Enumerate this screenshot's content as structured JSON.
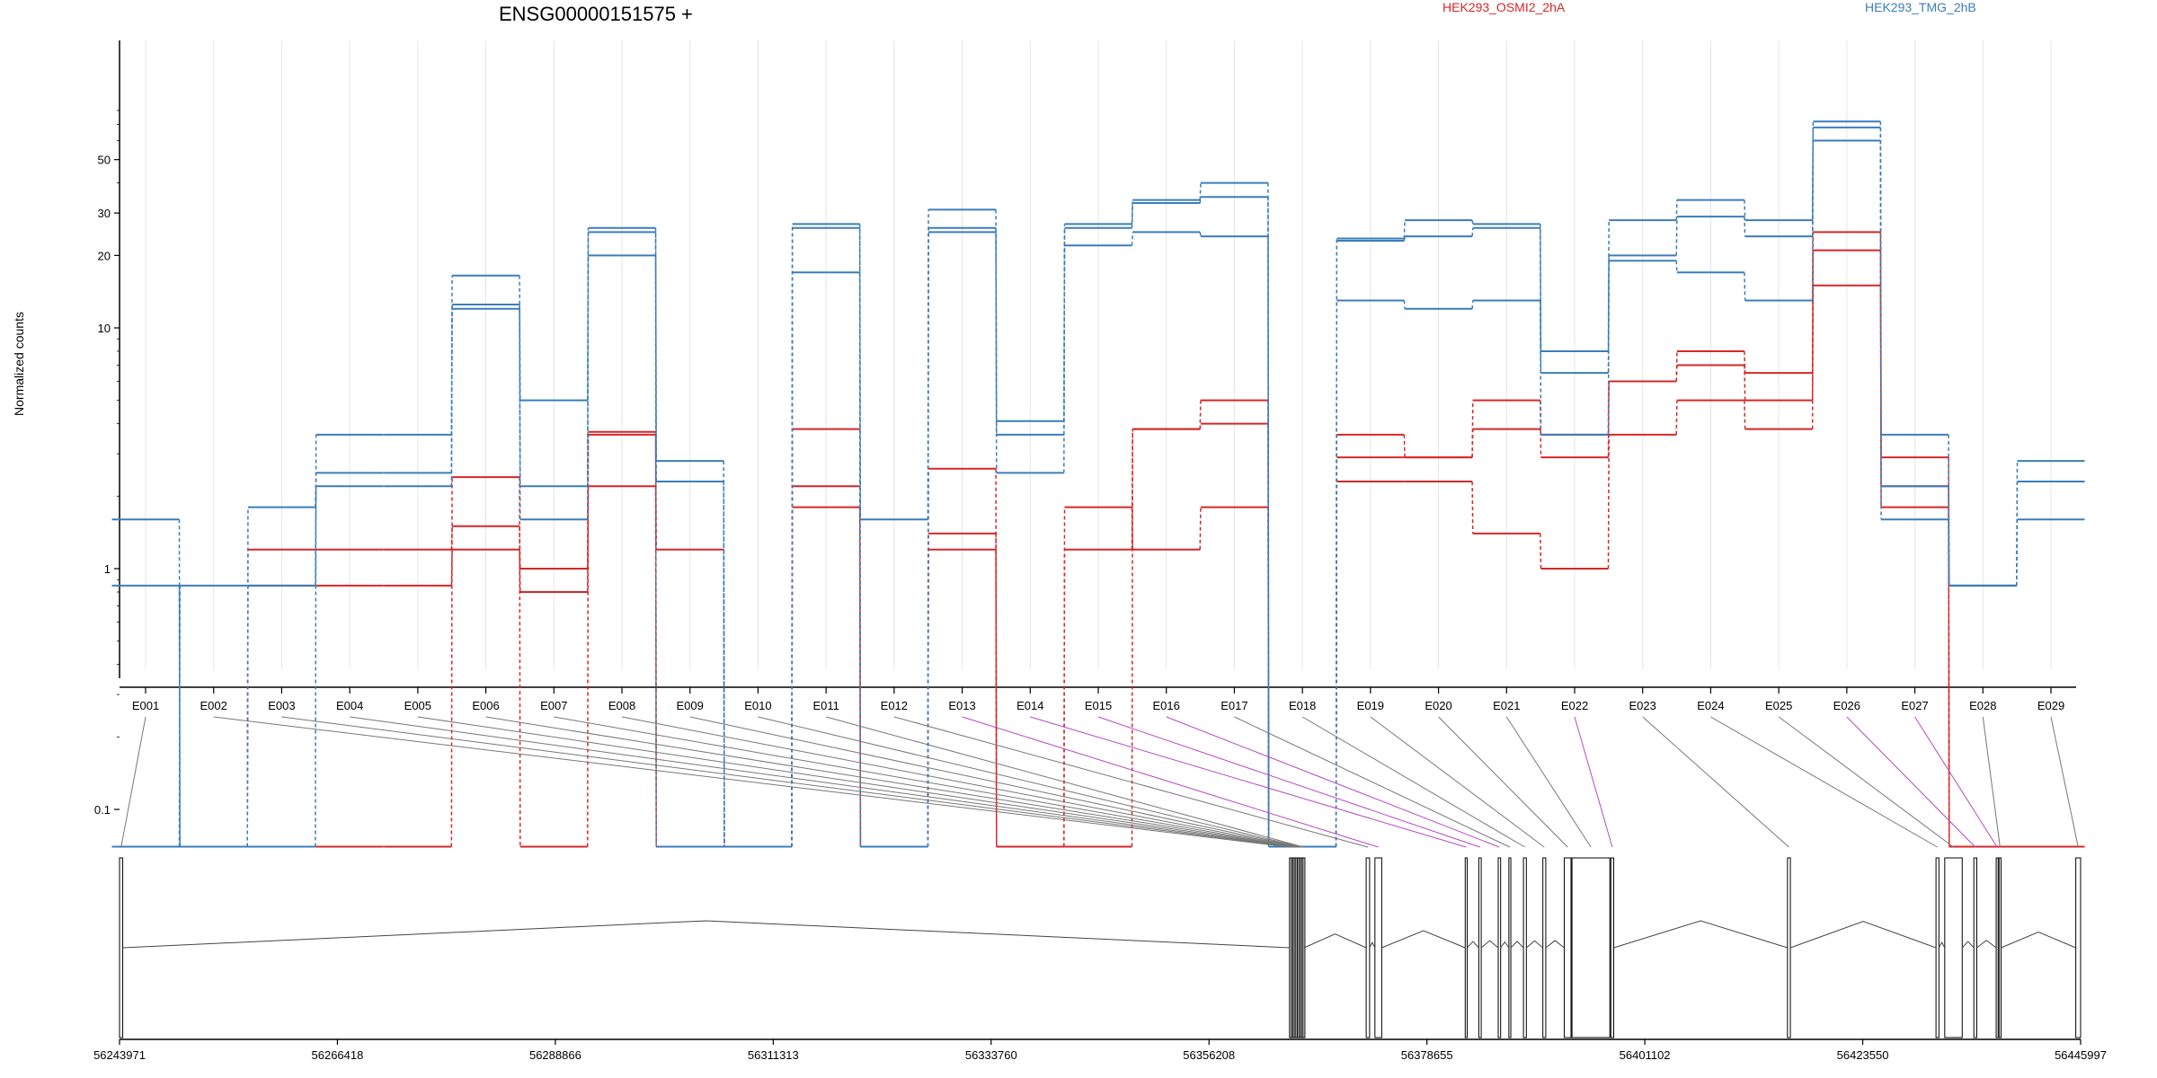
{
  "chart_data": {
    "type": "line",
    "title": "ENSG00000151575 +",
    "ylabel": "Normalized counts",
    "yscale": "log",
    "y_ticks": [
      0.1,
      1,
      10,
      20,
      30,
      50
    ],
    "y_tick_labels": [
      "0.1",
      "1",
      "10",
      "20",
      "30",
      "50"
    ],
    "categories": [
      "E001",
      "E002",
      "E003",
      "E004",
      "E005",
      "E006",
      "E007",
      "E008",
      "E009",
      "E010",
      "E011",
      "E012",
      "E013",
      "E014",
      "E015",
      "E016",
      "E017",
      "E018",
      "E019",
      "E020",
      "E021",
      "E022",
      "E023",
      "E024",
      "E025",
      "E026",
      "E027",
      "E028",
      "E029"
    ],
    "special_exons": [
      "E013",
      "E014",
      "E015",
      "E016",
      "E022",
      "E026",
      "E027"
    ],
    "grid": "vertical",
    "legend_placement": "top",
    "colors": {
      "osmi": "#d62728",
      "tmg": "#3b7dbb",
      "special": "#f01ee8",
      "connector": "#777777"
    },
    "series": [
      {
        "name": "HEK293_OSMI2_2hA",
        "color": "#d62728",
        "values": [
          0.07,
          0.07,
          1.2,
          1.2,
          1.2,
          1.5,
          1.0,
          3.6,
          1.2,
          0.07,
          1.8,
          0.07,
          1.2,
          0.07,
          1.8,
          1.2,
          1.8,
          0.07,
          2.3,
          2.3,
          1.4,
          1.0,
          3.6,
          5.0,
          3.8,
          15.0,
          2.2,
          0.07,
          0.07
        ]
      },
      {
        "name": "HEK293_OSMI2_2hA",
        "color": "#d62728",
        "values": [
          0.07,
          0.07,
          0.85,
          0.85,
          0.85,
          1.2,
          0.8,
          2.2,
          0.07,
          0.07,
          2.2,
          0.07,
          1.4,
          0.07,
          1.2,
          3.8,
          5.0,
          0.07,
          2.9,
          2.9,
          5.0,
          2.9,
          6.0,
          7.0,
          5.0,
          21.0,
          1.8,
          0.07,
          0.07
        ]
      },
      {
        "name": "HEK293_OSMI2_2hA",
        "color": "#d62728",
        "values": [
          0.07,
          0.07,
          0.07,
          0.07,
          0.07,
          2.4,
          0.07,
          3.7,
          0.07,
          0.07,
          3.8,
          0.07,
          2.6,
          0.07,
          0.07,
          3.8,
          4.0,
          0.07,
          3.6,
          2.9,
          3.8,
          3.6,
          6.0,
          8.0,
          6.5,
          25.0,
          2.9,
          0.07,
          0.07
        ]
      },
      {
        "name": "HEK293_TMG_2hB",
        "color": "#3b7dbb",
        "values": [
          0.07,
          0.85,
          0.85,
          2.2,
          2.2,
          12.0,
          1.6,
          20.0,
          0.07,
          0.07,
          17.0,
          0.07,
          25.0,
          2.5,
          22.0,
          25.0,
          24.0,
          0.07,
          13.0,
          12.0,
          13.0,
          3.6,
          19.0,
          17.0,
          13.0,
          60.0,
          1.6,
          0.85,
          1.6
        ]
      },
      {
        "name": "HEK293_TMG_2hB",
        "color": "#3b7dbb",
        "values": [
          0.85,
          0.07,
          1.8,
          2.5,
          2.5,
          12.5,
          2.2,
          25.0,
          2.3,
          0.07,
          26.0,
          0.07,
          26.0,
          3.6,
          26.0,
          33.0,
          35.0,
          0.07,
          23.0,
          24.0,
          26.0,
          6.5,
          20.0,
          29.0,
          24.0,
          68.0,
          2.2,
          0.85,
          2.3
        ]
      },
      {
        "name": "HEK293_TMG_2hB",
        "color": "#3b7dbb",
        "values": [
          1.6,
          0.07,
          0.07,
          3.6,
          3.6,
          16.5,
          5.0,
          26.0,
          2.8,
          0.07,
          27.0,
          1.6,
          31.0,
          4.1,
          27.0,
          34.0,
          40.0,
          0.07,
          23.5,
          28.0,
          27.0,
          8.0,
          28.0,
          34.0,
          28.0,
          72.0,
          3.6,
          0.85,
          2.8
        ]
      }
    ],
    "legend": [
      "HEK293_OSMI2_2hA",
      "HEK293_TMG_2hB"
    ],
    "genomic_axis": {
      "min": 56243971,
      "max": 56445997,
      "tick_values": [
        56243971,
        56266418,
        56288866,
        56311313,
        56333760,
        56356208,
        56378655,
        56401102,
        56423550,
        56445997
      ],
      "tick_labels": [
        "56243971",
        "56266418",
        "56288866",
        "56311313",
        "56333760",
        "56356208",
        "56378655",
        "56401102",
        "56423550",
        "56445997"
      ]
    },
    "exon_coords": [
      [
        56243971,
        56244300
      ],
      [
        56364500,
        56364650
      ],
      [
        56364700,
        56364800
      ],
      [
        56364850,
        56364950
      ],
      [
        56365000,
        56365100
      ],
      [
        56365150,
        56365250
      ],
      [
        56365300,
        56365400
      ],
      [
        56365450,
        56365550
      ],
      [
        56365600,
        56365700
      ],
      [
        56365750,
        56365850
      ],
      [
        56365900,
        56366000
      ],
      [
        56372400,
        56372750
      ],
      [
        56373300,
        56374000
      ],
      [
        56382600,
        56382800
      ],
      [
        56384000,
        56384250
      ],
      [
        56386000,
        56386250
      ],
      [
        56387100,
        56387300
      ],
      [
        56388600,
        56388900
      ],
      [
        56390600,
        56390900
      ],
      [
        56392800,
        56393500
      ],
      [
        56393600,
        56397500
      ],
      [
        56397600,
        56397900
      ],
      [
        56415800,
        56416100
      ],
      [
        56431100,
        56431400
      ],
      [
        56432000,
        56433800
      ],
      [
        56435000,
        56435300
      ],
      [
        56437300,
        56437500
      ],
      [
        56437600,
        56437800
      ],
      [
        56445500,
        56445997
      ]
    ]
  }
}
